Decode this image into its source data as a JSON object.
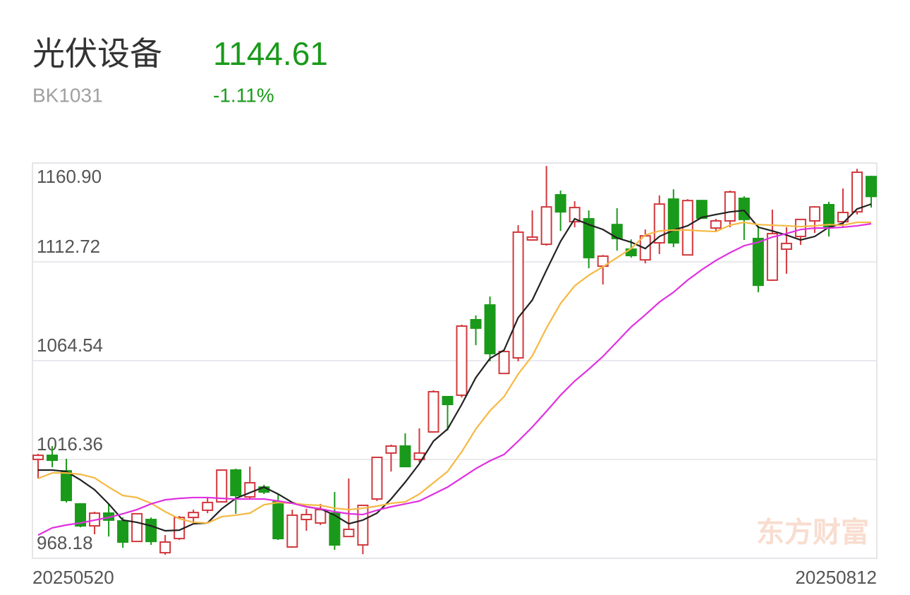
{
  "header": {
    "name": "光伏设备",
    "code": "BK1031",
    "price": 1144.61,
    "change": "-1.11%"
  },
  "watermark": "东方财富",
  "chart_data": {
    "type": "candlestick",
    "up_color": "#d2383d",
    "down_color": "#1a9a1a",
    "ylim": [
      968.18,
      1160.9
    ],
    "yticks": [
      968.18,
      1016.36,
      1064.54,
      1112.72,
      {
        "value": 1160.9,
        "label": "1160.90"
      }
    ],
    "grid": true,
    "categories": [
      "20250520",
      null,
      null,
      null,
      null,
      null,
      null,
      null,
      null,
      null,
      null,
      null,
      null,
      null,
      null,
      null,
      null,
      null,
      null,
      null,
      null,
      null,
      null,
      null,
      null,
      null,
      null,
      null,
      null,
      null,
      null,
      null,
      null,
      null,
      null,
      null,
      null,
      null,
      null,
      null,
      null,
      null,
      null,
      null,
      null,
      null,
      null,
      null,
      null,
      null,
      null,
      null,
      null,
      null,
      null,
      null,
      null,
      null,
      null,
      "20250812"
    ],
    "open": [
      1016.4,
      1018.4,
      1010.8,
      994.7,
      984.0,
      990.2,
      986.4,
      976.4,
      987.1,
      970.9,
      977.8,
      988.1,
      991.6,
      995.7,
      1011.2,
      998.1,
      1002.9,
      995.7,
      973.7,
      987.1,
      985.4,
      990.2,
      978.8,
      974.7,
      997.1,
      1019.5,
      1022.9,
      1016.4,
      1029.8,
      1047.0,
      1047.7,
      1084.5,
      1091.7,
      1058.3,
      1065.9,
      1123.4,
      1121.3,
      1145.4,
      1132.3,
      1133.7,
      1110.6,
      1130.9,
      1118.9,
      1113.7,
      1122.0,
      1143.3,
      1116.1,
      1142.6,
      1129.2,
      1132.7,
      1143.7,
      1124.1,
      1103.8,
      1118.9,
      1125.1,
      1132.7,
      1140.6,
      1132.3,
      1137.1,
      1154.3
    ],
    "high": [
      1019.1,
      1022.9,
      1016.7,
      994.7,
      990.9,
      994.7,
      988.1,
      990.2,
      988.1,
      979.5,
      988.8,
      991.9,
      997.8,
      1011.5,
      1011.9,
      1012.9,
      1004.0,
      999.2,
      991.9,
      992.3,
      994.7,
      1000.5,
      1007.1,
      994.3,
      1017.7,
      1023.6,
      1029.1,
      1031.5,
      1050.1,
      1047.3,
      1082.1,
      1086.6,
      1095.8,
      1069.7,
      1130.6,
      1137.8,
      1159.5,
      1147.5,
      1142.3,
      1137.8,
      1116.1,
      1138.9,
      1123.7,
      1128.5,
      1145.1,
      1148.1,
      1143.3,
      1143.0,
      1133.7,
      1147.5,
      1144.7,
      1130.3,
      1138.2,
      1129.6,
      1133.7,
      1139.9,
      1142.0,
      1148.5,
      1158.1,
      1154.7
    ],
    "low": [
      1007.1,
      1012.6,
      995.4,
      983.3,
      979.9,
      978.8,
      973.3,
      976.1,
      974.7,
      969.9,
      977.1,
      985.7,
      990.2,
      995.4,
      989.9,
      997.4,
      999.5,
      977.1,
      973.3,
      981.6,
      984.4,
      972.3,
      978.8,
      970.2,
      996.1,
      1010.5,
      1012.6,
      1015.0,
      1029.4,
      1030.5,
      1046.6,
      1072.1,
      1064.2,
      1058.0,
      1064.2,
      1123.0,
      1120.6,
      1127.8,
      1129.6,
      1109.6,
      1101.7,
      1118.2,
      1114.8,
      1112.0,
      1116.5,
      1119.9,
      1115.8,
      1133.7,
      1127.5,
      1129.6,
      1123.4,
      1097.9,
      1103.4,
      1106.9,
      1121.0,
      1126.8,
      1125.1,
      1129.6,
      1135.8,
      1139.2
    ],
    "close": [
      1018.4,
      1016.0,
      996.4,
      984.0,
      990.2,
      986.8,
      976.1,
      989.9,
      976.4,
      976.1,
      988.1,
      990.5,
      995.4,
      1011.2,
      998.8,
      1005.0,
      1000.5,
      977.8,
      989.2,
      989.5,
      991.9,
      974.7,
      982.3,
      994.0,
      1017.4,
      1022.9,
      1012.9,
      1019.5,
      1049.4,
      1043.2,
      1081.4,
      1080.4,
      1068.0,
      1069.0,
      1127.2,
      1124.8,
      1139.5,
      1137.1,
      1139.2,
      1114.8,
      1115.5,
      1124.1,
      1115.8,
      1125.4,
      1140.9,
      1122.0,
      1142.6,
      1134.0,
      1132.7,
      1146.8,
      1133.4,
      1101.3,
      1126.5,
      1121.7,
      1133.4,
      1139.5,
      1129.6,
      1136.8,
      1156.4,
      1144.61
    ],
    "series": [
      {
        "color": "#222222",
        "values": [
          1011.2,
          1011.2,
          1010.5,
          1006.4,
          1001.6,
          994.7,
          986.8,
          985.7,
          984.0,
          981.6,
          981.9,
          985.0,
          985.4,
          992.3,
          997.4,
          1000.2,
          1002.9,
          999.5,
          995.4,
          993.3,
          992.3,
          989.2,
          985.0,
          986.8,
          990.2,
          997.1,
          1005.3,
          1014.3,
          1025.3,
          1031.2,
          1043.2,
          1056.3,
          1065.6,
          1069.7,
          1085.5,
          1094.1,
          1108.6,
          1122.7,
          1133.7,
          1130.9,
          1128.5,
          1124.4,
          1122.3,
          1119.2,
          1125.1,
          1128.2,
          1130.3,
          1134.4,
          1135.8,
          1137.1,
          1137.8,
          1129.6,
          1127.8,
          1125.8,
          1123.4,
          1125.1,
          1129.6,
          1131.6,
          1138.5,
          1140.9
        ]
      },
      {
        "color": "#f5b942",
        "values": [
          1007.1,
          1009.8,
          1009.8,
          1009.1,
          1007.4,
          1002.9,
          998.8,
          997.8,
          995.0,
          990.9,
          987.5,
          985.7,
          985.4,
          988.5,
          989.2,
          990.2,
          994.3,
          995.4,
          995.0,
          994.3,
          994.0,
          992.6,
          991.9,
          992.6,
          993.6,
          995.0,
          995.7,
          999.5,
          1005.0,
          1010.5,
          1020.1,
          1031.2,
          1040.1,
          1047.0,
          1058.0,
          1066.9,
          1080.4,
          1092.4,
          1101.0,
          1106.2,
          1110.3,
          1114.8,
          1119.2,
          1125.8,
          1127.8,
          1128.2,
          1128.2,
          1127.8,
          1127.5,
          1130.6,
          1132.0,
          1130.9,
          1130.6,
          1130.3,
          1129.9,
          1130.3,
          1130.9,
          1130.6,
          1132.0,
          1132.0
        ]
      },
      {
        "color": "#e030e0",
        "values": [
          979.5,
          983.0,
          984.4,
          985.4,
          986.8,
          988.1,
          989.9,
          991.9,
          994.7,
          996.7,
          997.4,
          997.8,
          997.8,
          997.4,
          997.1,
          997.1,
          997.1,
          996.1,
          995.0,
          993.3,
          992.3,
          990.9,
          989.9,
          989.5,
          991.6,
          993.3,
          994.7,
          996.1,
          999.5,
          1002.9,
          1007.4,
          1011.9,
          1015.7,
          1018.8,
          1025.3,
          1032.2,
          1039.8,
          1047.7,
          1054.6,
          1060.4,
          1066.6,
          1073.8,
          1081.0,
          1086.9,
          1093.1,
          1097.9,
          1103.8,
          1108.9,
          1113.4,
          1117.2,
          1120.6,
          1122.3,
          1124.8,
          1126.5,
          1128.5,
          1129.2,
          1129.2,
          1129.6,
          1130.3,
          1131.3
        ]
      }
    ]
  }
}
